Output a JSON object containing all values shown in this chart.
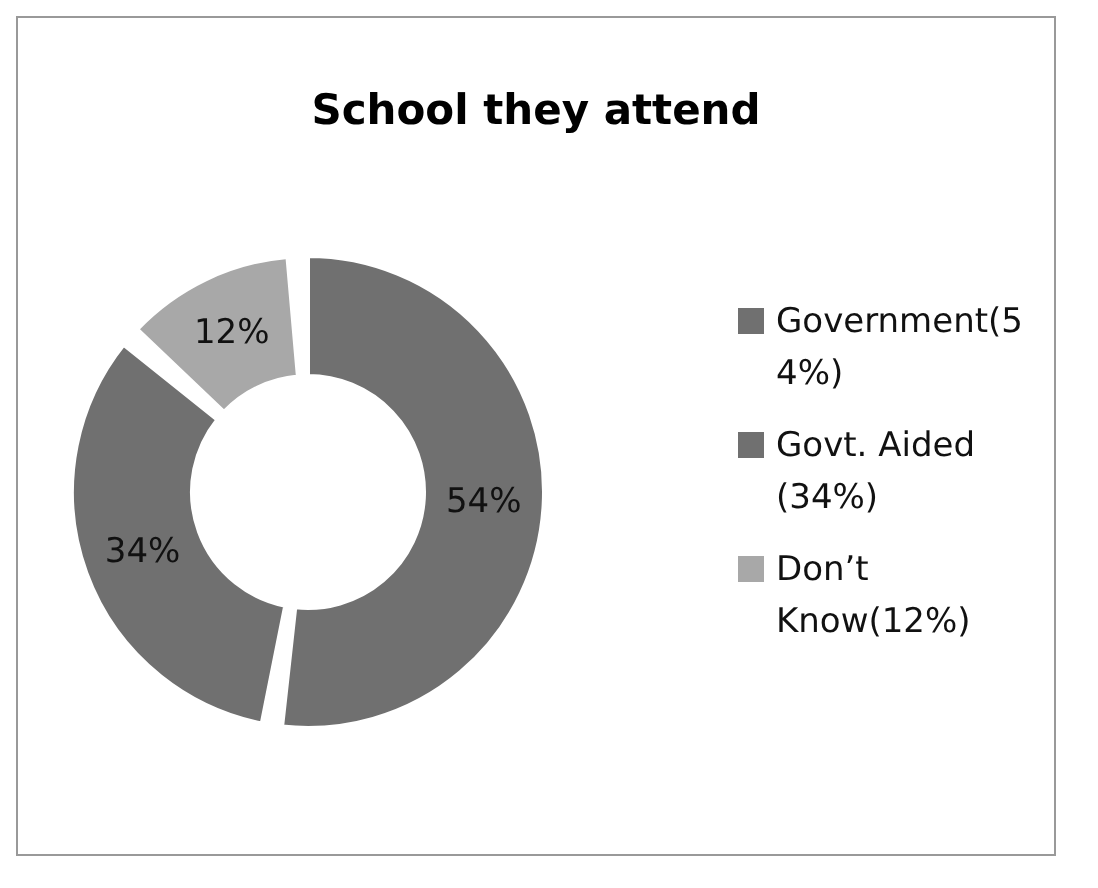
{
  "chart_data": {
    "type": "donut",
    "title": "School they attend",
    "categories": [
      "Government(54%)",
      "Govt. Aided (34%)",
      "Don’t Know(12%)"
    ],
    "values": [
      54,
      34,
      12
    ],
    "colors": [
      "#707070",
      "#707070",
      "#a8a8a8"
    ],
    "value_labels": [
      "54%",
      "34%",
      "12%"
    ],
    "legend": "right"
  }
}
